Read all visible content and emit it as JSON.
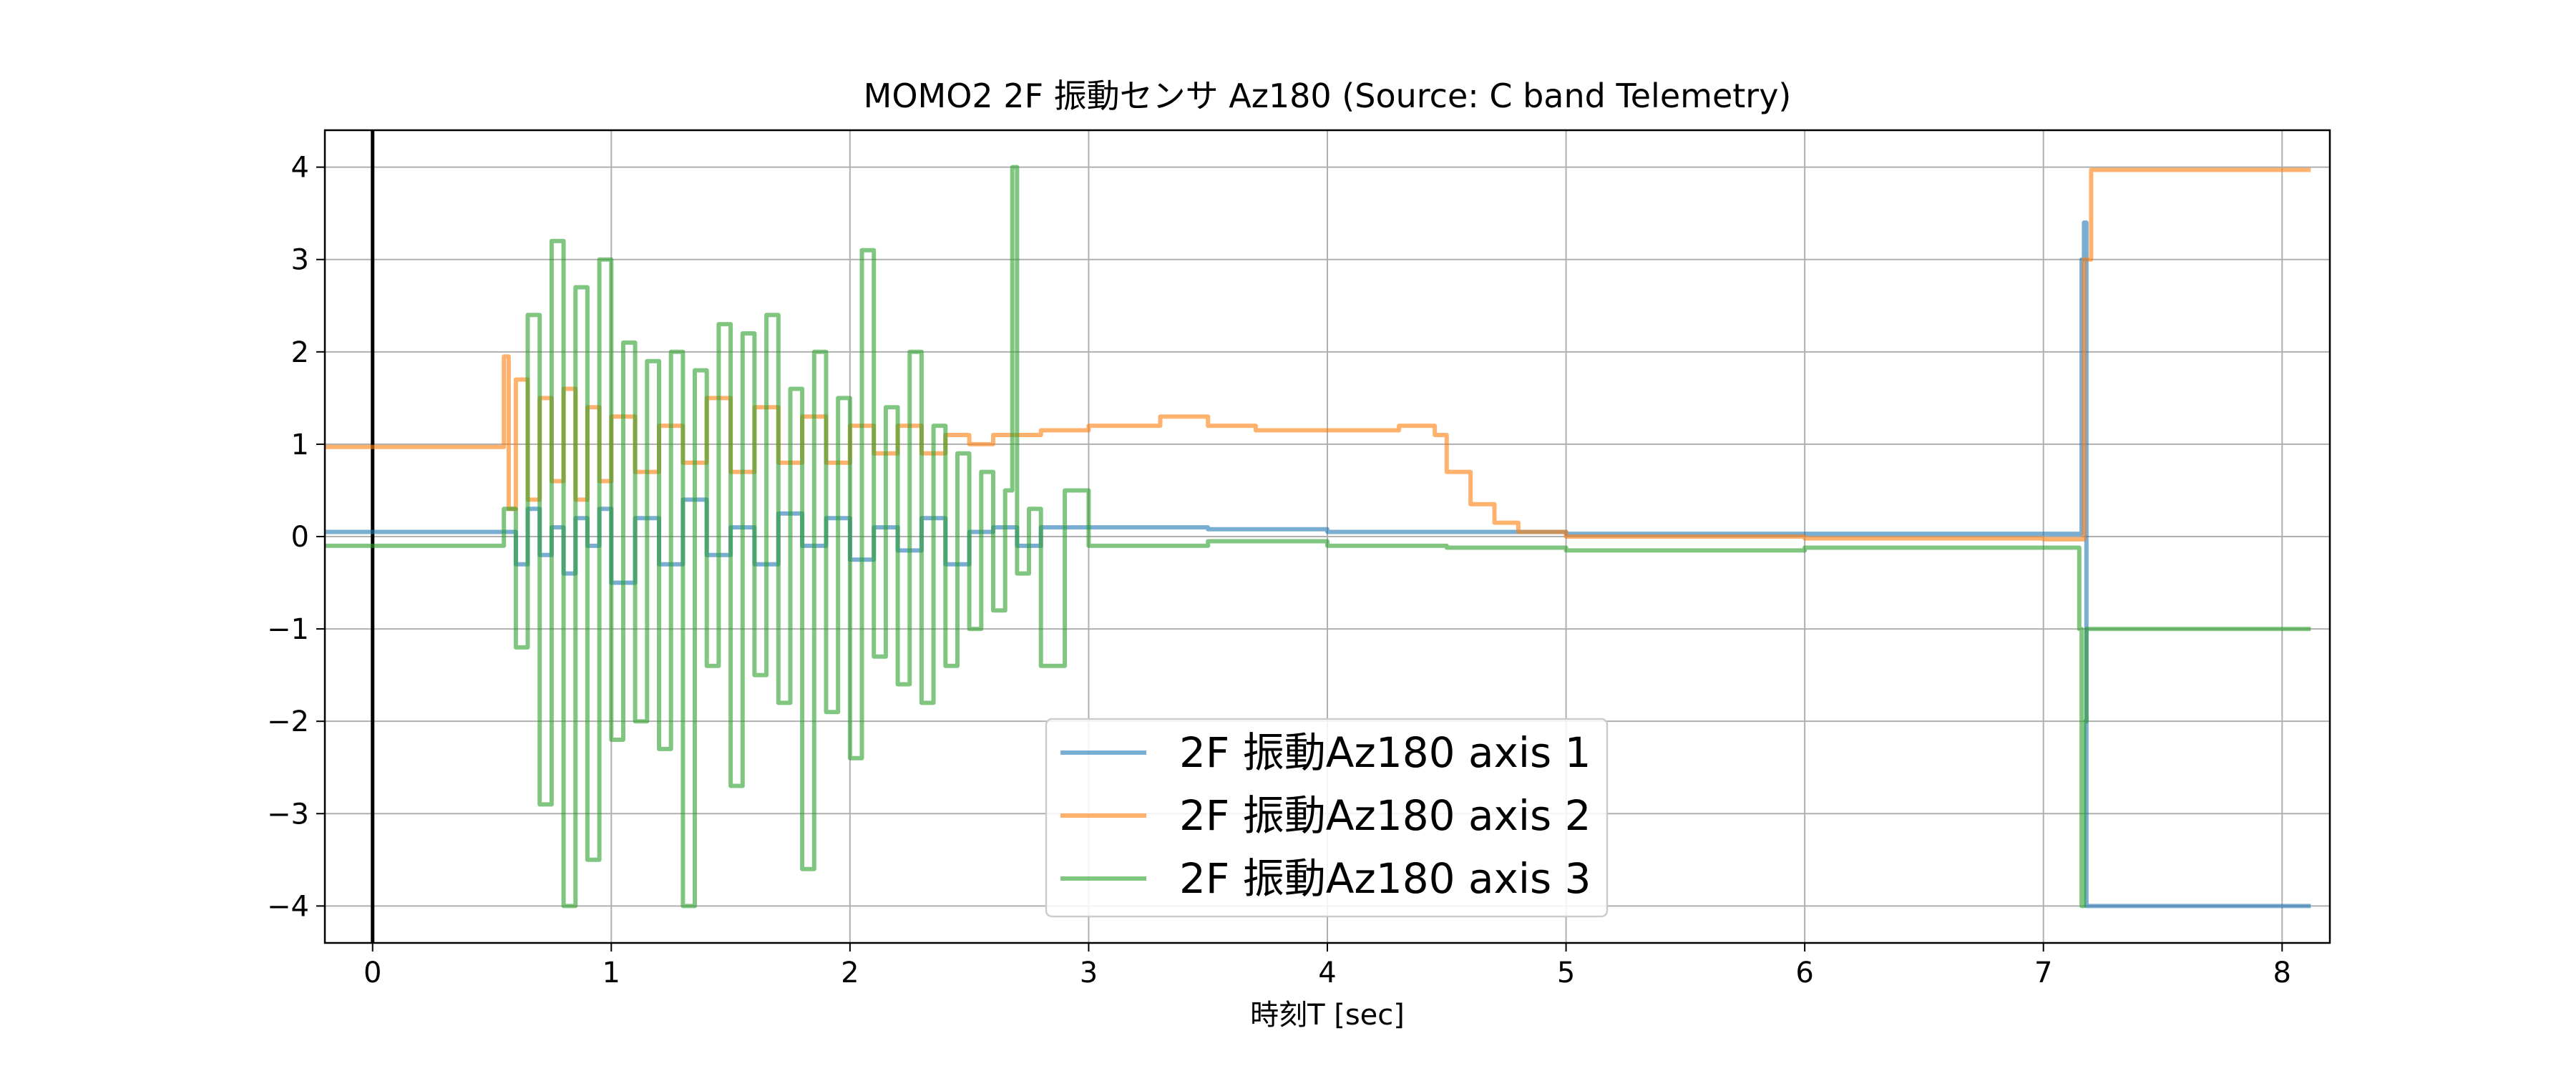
{
  "chart_data": {
    "type": "line",
    "title": "MOMO2 2F 振動センサ Az180 (Source: C band Telemetry)",
    "xlabel": "時刻T [sec]",
    "ylabel": "",
    "xlim": [
      -0.2,
      8.2
    ],
    "ylim": [
      -4.4,
      4.4
    ],
    "x_ticks": [
      0,
      1,
      2,
      3,
      4,
      5,
      6,
      7,
      8
    ],
    "x_tick_labels": [
      "0",
      "1",
      "2",
      "3",
      "4",
      "5",
      "6",
      "7",
      "8"
    ],
    "y_ticks": [
      4,
      3,
      2,
      1,
      0,
      -1,
      -2,
      -3,
      -4
    ],
    "y_tick_labels": [
      "4",
      "3",
      "2",
      "1",
      "0",
      "−1",
      "−2",
      "−3",
      "−4"
    ],
    "grid": true,
    "legend_position": "lower-center",
    "vertical_reference_line_x": 0,
    "series": [
      {
        "name": "2F 振動Az180 axis 1",
        "color": "#1f77b4",
        "x": [
          -0.2,
          0.55,
          0.6,
          0.65,
          0.7,
          0.75,
          0.8,
          0.85,
          0.9,
          0.95,
          1.0,
          1.1,
          1.2,
          1.3,
          1.4,
          1.5,
          1.6,
          1.7,
          1.8,
          1.9,
          2.0,
          2.1,
          2.2,
          2.3,
          2.4,
          2.5,
          2.6,
          2.7,
          2.8,
          3.0,
          3.5,
          4.0,
          4.5,
          5.0,
          6.0,
          7.0,
          7.15,
          7.16,
          7.17,
          7.18,
          8.12
        ],
        "y": [
          0.05,
          0.05,
          -0.3,
          0.3,
          -0.2,
          0.1,
          -0.4,
          0.2,
          -0.1,
          0.3,
          -0.5,
          0.2,
          -0.3,
          0.4,
          -0.2,
          0.1,
          -0.3,
          0.25,
          -0.1,
          0.2,
          -0.25,
          0.1,
          -0.15,
          0.2,
          -0.3,
          0.05,
          0.1,
          -0.1,
          0.1,
          0.1,
          0.08,
          0.05,
          0.05,
          0.03,
          0.03,
          0.03,
          0.03,
          3.0,
          3.4,
          -4.0,
          -4.0
        ]
      },
      {
        "name": "2F 振動Az180 axis 2",
        "color": "#ff7f0e",
        "x": [
          -0.2,
          0.5,
          0.55,
          0.57,
          0.6,
          0.65,
          0.7,
          0.75,
          0.8,
          0.85,
          0.9,
          0.95,
          1.0,
          1.1,
          1.2,
          1.3,
          1.4,
          1.5,
          1.6,
          1.7,
          1.8,
          1.9,
          2.0,
          2.1,
          2.2,
          2.3,
          2.4,
          2.5,
          2.6,
          2.8,
          3.0,
          3.3,
          3.5,
          3.7,
          4.0,
          4.3,
          4.45,
          4.5,
          4.6,
          4.7,
          4.8,
          5.0,
          6.0,
          7.0,
          7.15,
          7.17,
          7.2,
          8.12
        ],
        "y": [
          0.97,
          0.97,
          1.95,
          0.3,
          1.7,
          0.4,
          1.5,
          0.6,
          1.6,
          0.4,
          1.4,
          0.6,
          1.3,
          0.7,
          1.2,
          0.8,
          1.5,
          0.7,
          1.4,
          0.8,
          1.3,
          0.8,
          1.2,
          0.9,
          1.2,
          0.9,
          1.1,
          1.0,
          1.1,
          1.15,
          1.2,
          1.3,
          1.2,
          1.15,
          1.15,
          1.2,
          1.1,
          0.7,
          0.35,
          0.15,
          0.05,
          0.0,
          -0.02,
          -0.03,
          -0.03,
          3.0,
          3.97,
          3.97
        ]
      },
      {
        "name": "2F 振動Az180 axis 3",
        "color": "#2ca02c",
        "x": [
          -0.2,
          0.5,
          0.55,
          0.6,
          0.65,
          0.7,
          0.75,
          0.8,
          0.85,
          0.9,
          0.95,
          1.0,
          1.05,
          1.1,
          1.15,
          1.2,
          1.25,
          1.3,
          1.35,
          1.4,
          1.45,
          1.5,
          1.55,
          1.6,
          1.65,
          1.7,
          1.75,
          1.8,
          1.85,
          1.9,
          1.95,
          2.0,
          2.05,
          2.1,
          2.15,
          2.2,
          2.25,
          2.3,
          2.35,
          2.4,
          2.45,
          2.5,
          2.55,
          2.6,
          2.65,
          2.68,
          2.7,
          2.75,
          2.8,
          2.9,
          3.0,
          3.5,
          4.0,
          4.5,
          5.0,
          6.0,
          7.0,
          7.14,
          7.15,
          7.16,
          7.17,
          7.18,
          7.2,
          8.12
        ],
        "y": [
          -0.1,
          -0.1,
          0.3,
          -1.2,
          2.4,
          -2.9,
          3.2,
          -4.0,
          2.7,
          -3.5,
          3.0,
          -2.2,
          2.1,
          -2.0,
          1.9,
          -2.3,
          2.0,
          -4.0,
          1.8,
          -1.4,
          2.3,
          -2.7,
          2.2,
          -1.5,
          2.4,
          -1.8,
          1.6,
          -3.6,
          2.0,
          -1.9,
          1.5,
          -2.4,
          3.1,
          -1.3,
          1.4,
          -1.6,
          2.0,
          -1.8,
          1.2,
          -1.4,
          0.9,
          -1.0,
          0.7,
          -0.8,
          0.5,
          4.0,
          -0.4,
          0.3,
          -1.4,
          0.5,
          -0.1,
          -0.05,
          -0.1,
          -0.12,
          -0.15,
          -0.12,
          -0.12,
          -0.12,
          -1.0,
          -4.0,
          -2.0,
          -1.0,
          -1.0,
          -1.0
        ]
      }
    ]
  }
}
